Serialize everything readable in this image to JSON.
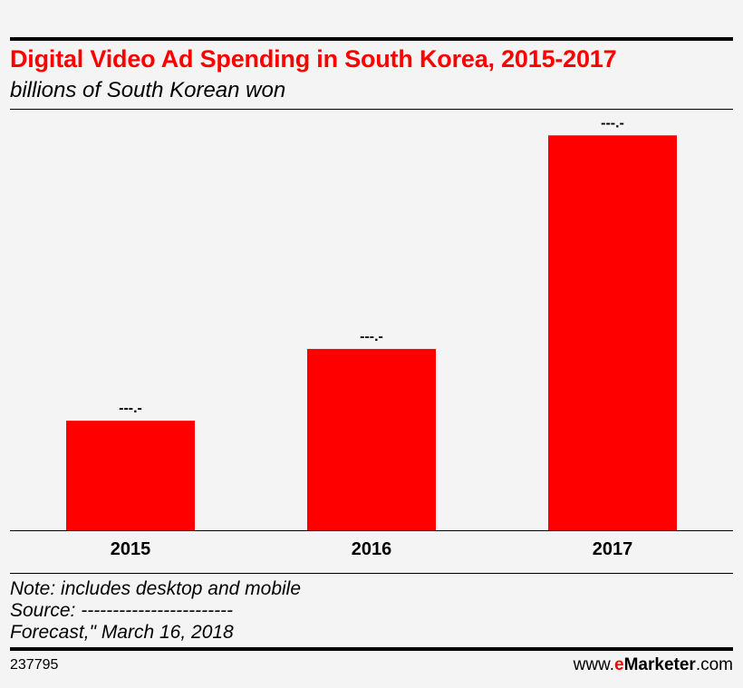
{
  "header": {
    "title": "Digital Video Ad Spending in South Korea, 2015-2017",
    "subtitle": "billions of South Korean won"
  },
  "chart_data": {
    "type": "bar",
    "title": "Digital Video Ad Spending in South Korea, 2015-2017",
    "subtitle": "billions of South Korean won",
    "categories": [
      "2015",
      "2016",
      "2017"
    ],
    "values": [
      119,
      197,
      429
    ],
    "data_labels": [
      "---.-",
      "---.-",
      "---.-"
    ],
    "ylim": [
      0,
      450
    ],
    "grid": false,
    "bar_color": "#ff0000"
  },
  "footer": {
    "note": "Note: includes desktop and mobile",
    "source": "Source: ------------------------",
    "forecast": "Forecast,\" March 16, 2018",
    "chart_id": "237795",
    "brand_prefix": "www.",
    "brand_e": "e",
    "brand_name": "Marketer",
    "brand_suffix": ".com"
  }
}
